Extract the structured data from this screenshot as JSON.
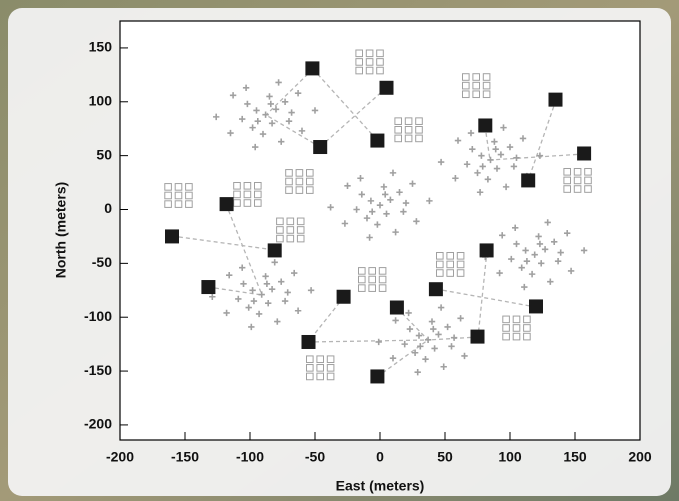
{
  "chart_data": {
    "type": "scatter",
    "xlabel": "East (meters)",
    "ylabel": "North (meters)",
    "xlim": [
      -200,
      200
    ],
    "ylim": [
      -214,
      175
    ],
    "xticks": [
      -200,
      -150,
      -100,
      -50,
      0,
      50,
      100,
      150,
      200
    ],
    "yticks": [
      -200,
      -150,
      -100,
      -50,
      0,
      50,
      100,
      150
    ],
    "series": [
      {
        "marker": "plus",
        "color": "#a0a0a0",
        "x": [
          -88,
          -80,
          -95,
          -83,
          -94,
          -73,
          -102,
          -70,
          -106,
          -85,
          -90,
          -63,
          -113,
          -60,
          -115,
          -78,
          -96,
          -50,
          -126,
          -76,
          -103,
          -84,
          -98,
          -68,
          0,
          8,
          -7,
          5,
          -6,
          15,
          -14,
          18,
          -18,
          3,
          -2,
          25,
          -25,
          28,
          -27,
          10,
          -8,
          38,
          -38,
          12,
          -15,
          4,
          -10,
          20,
          85,
          93,
          78,
          90,
          79,
          100,
          71,
          103,
          67,
          88,
          83,
          110,
          60,
          113,
          58,
          95,
          77,
          123,
          47,
          97,
          70,
          89,
          75,
          105,
          119,
          127,
          112,
          124,
          113,
          134,
          105,
          137,
          101,
          122,
          117,
          144,
          94,
          147,
          92,
          129,
          111,
          157,
          81,
          131,
          104,
          123,
          109,
          139,
          -91,
          -83,
          -98,
          -86,
          -97,
          -76,
          -105,
          -73,
          -109,
          -88,
          -93,
          -66,
          -116,
          -63,
          -118,
          -81,
          -99,
          -53,
          -129,
          -79,
          -106,
          -87,
          -101,
          -71,
          37,
          45,
          30,
          42,
          31,
          52,
          23,
          55,
          19,
          40,
          35,
          62,
          12,
          65,
          10,
          47,
          29,
          75,
          -1,
          49,
          22,
          41,
          27,
          57
        ],
        "y": [
          88,
          93,
          92,
          80,
          82,
          100,
          98,
          82,
          84,
          105,
          70,
          108,
          106,
          73,
          71,
          118,
          58,
          92,
          86,
          63,
          113,
          98,
          76,
          90,
          4,
          9,
          8,
          -4,
          -2,
          16,
          14,
          -2,
          0,
          21,
          -14,
          24,
          22,
          -11,
          -13,
          34,
          -26,
          8,
          2,
          -21,
          29,
          14,
          -8,
          6,
          46,
          51,
          50,
          38,
          40,
          58,
          56,
          40,
          42,
          63,
          28,
          66,
          64,
          31,
          29,
          76,
          16,
          50,
          44,
          21,
          71,
          56,
          34,
          48,
          -42,
          -37,
          -38,
          -50,
          -48,
          -30,
          -32,
          -48,
          -46,
          -25,
          -60,
          -22,
          -24,
          -57,
          -59,
          -12,
          -72,
          -38,
          -44,
          -67,
          -17,
          -32,
          -54,
          -40,
          -79,
          -74,
          -75,
          -87,
          -85,
          -67,
          -69,
          -85,
          -83,
          -62,
          -97,
          -59,
          -61,
          -94,
          -96,
          -49,
          -109,
          -75,
          -81,
          -104,
          -54,
          -69,
          -91,
          -77,
          -121,
          -116,
          -117,
          -129,
          -127,
          -109,
          -111,
          -127,
          -125,
          -104,
          -139,
          -101,
          -103,
          -136,
          -138,
          -91,
          -151,
          -117,
          -123,
          -146,
          -96,
          -111,
          -133,
          -119
        ]
      },
      {
        "marker": "square-open",
        "color": "#a0a0a0",
        "x": [
          -163,
          -155,
          -147,
          -163,
          -155,
          -147,
          -163,
          -155,
          -147,
          -110,
          -102,
          -94,
          -110,
          -102,
          -94,
          -110,
          -102,
          -94,
          -70,
          -62,
          -54,
          -70,
          -62,
          -54,
          -70,
          -62,
          -54,
          -77,
          -69,
          -61,
          -77,
          -69,
          -61,
          -77,
          -69,
          -61,
          -16,
          -8,
          0,
          -16,
          -8,
          0,
          -16,
          -8,
          0,
          66,
          74,
          82,
          66,
          74,
          82,
          66,
          74,
          82,
          14,
          22,
          30,
          14,
          22,
          30,
          14,
          22,
          30,
          144,
          152,
          160,
          144,
          152,
          160,
          144,
          152,
          160,
          -14,
          -6,
          2,
          -14,
          -6,
          2,
          -14,
          -6,
          2,
          46,
          54,
          62,
          46,
          54,
          62,
          46,
          54,
          62,
          97,
          105,
          113,
          97,
          105,
          113,
          97,
          105,
          113,
          -54,
          -46,
          -38,
          -54,
          -46,
          -38,
          -54,
          -46,
          -38
        ],
        "y": [
          21,
          21,
          21,
          13,
          13,
          13,
          5,
          5,
          5,
          22,
          22,
          22,
          14,
          14,
          14,
          6,
          6,
          6,
          34,
          34,
          34,
          26,
          26,
          26,
          18,
          18,
          18,
          -11,
          -11,
          -11,
          -19,
          -19,
          -19,
          -27,
          -27,
          -27,
          145,
          145,
          145,
          137,
          137,
          137,
          129,
          129,
          129,
          123,
          123,
          123,
          115,
          115,
          115,
          107,
          107,
          107,
          82,
          82,
          82,
          74,
          74,
          74,
          66,
          66,
          66,
          35,
          35,
          35,
          27,
          27,
          27,
          19,
          19,
          19,
          -57,
          -57,
          -57,
          -65,
          -65,
          -65,
          -73,
          -73,
          -73,
          -43,
          -43,
          -43,
          -51,
          -51,
          -51,
          -59,
          -59,
          -59,
          -102,
          -102,
          -102,
          -110,
          -110,
          -110,
          -118,
          -118,
          -118,
          -139,
          -139,
          -139,
          -147,
          -147,
          -147,
          -155,
          -155,
          -155
        ]
      },
      {
        "marker": "square-filled",
        "color": "#1a1a1a",
        "x": [
          -52,
          5,
          -46,
          -2,
          81,
          135,
          157,
          114,
          -118,
          -160,
          -81,
          -132,
          -28,
          13,
          43,
          82,
          120,
          75,
          -55,
          -2
        ],
        "y": [
          131,
          113,
          58,
          64,
          78,
          102,
          52,
          27,
          5,
          -25,
          -38,
          -72,
          -81,
          -91,
          -74,
          -38,
          -90,
          -118,
          -123,
          -155
        ]
      }
    ]
  }
}
